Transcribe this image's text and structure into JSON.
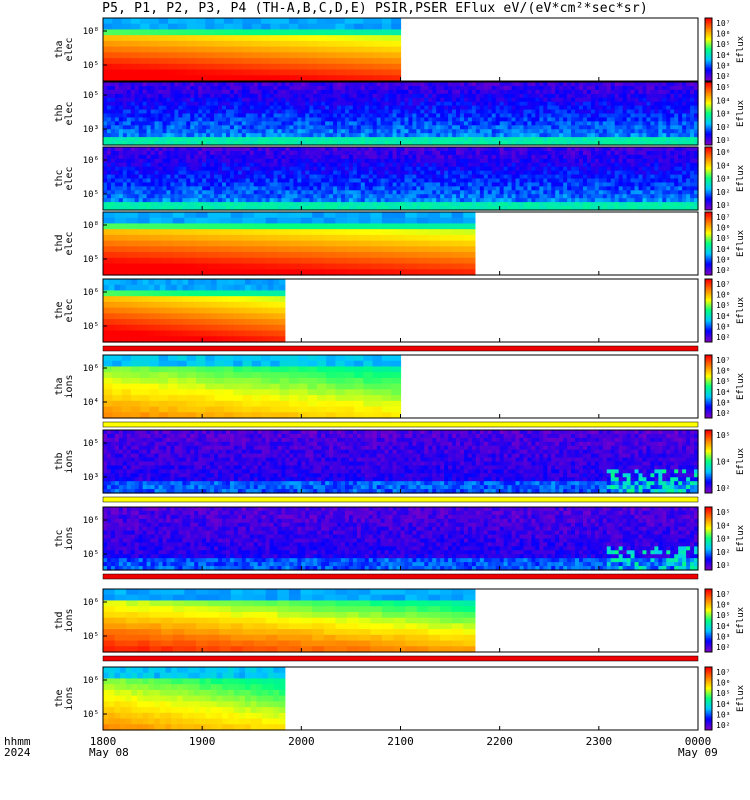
{
  "title": "P5, P1, P2, P3, P4 (TH-A,B,C,D,E) PSIR,PSER EFlux eV/(eV*cm²*sec*sr)",
  "x_axis": {
    "ticks": [
      "1800",
      "1900",
      "2000",
      "2100",
      "2200",
      "2300",
      "0000"
    ],
    "row_label_1": "hhmm",
    "row_label_2": "2024",
    "start_date": "May 08",
    "end_date": "May 09"
  },
  "colormap": [
    "#7a00c8",
    "#0000ff",
    "#00c8ff",
    "#00ff80",
    "#ffff00",
    "#ff8000",
    "#ff0000"
  ],
  "chart_data": [
    {
      "type": "heatmap",
      "probe": "tha",
      "species": "elec",
      "ylabel": "tha\nelec",
      "y_ticks": [
        "10⁸",
        "10⁵"
      ],
      "data_end": "2100",
      "colorbar_label": "Eflux",
      "colorbar_ticks": [
        "10⁷",
        "10⁶",
        "10⁵",
        "10⁴",
        "10³",
        "10²"
      ],
      "pattern": "elec_hot",
      "flags_below": []
    },
    {
      "type": "heatmap",
      "probe": "thb",
      "species": "elec",
      "ylabel": "thb\nelec",
      "y_ticks": [
        "10⁵",
        "10³"
      ],
      "data_end": "0000",
      "colorbar_label": "Eflux",
      "colorbar_ticks": [
        "10⁵",
        "10⁴",
        "10³",
        "10²",
        "10¹"
      ],
      "pattern": "noisy_elec",
      "flags_below": []
    },
    {
      "type": "heatmap",
      "probe": "thc",
      "species": "elec",
      "ylabel": "thc\nelec",
      "y_ticks": [
        "10⁶",
        "10⁵"
      ],
      "data_end": "0000",
      "colorbar_label": "Eflux",
      "colorbar_ticks": [
        "10⁶",
        "10⁴",
        "10³",
        "10²",
        "10¹"
      ],
      "pattern": "noisy_elec",
      "flags_below": []
    },
    {
      "type": "heatmap",
      "probe": "thd",
      "species": "elec",
      "ylabel": "thd\nelec",
      "y_ticks": [
        "10⁸",
        "10⁵"
      ],
      "data_end": "2145",
      "colorbar_label": "Eflux",
      "colorbar_ticks": [
        "10⁷",
        "10⁶",
        "10⁵",
        "10⁴",
        "10³",
        "10²"
      ],
      "pattern": "elec_hot",
      "flags_below": []
    },
    {
      "type": "heatmap",
      "probe": "the",
      "species": "elec",
      "ylabel": "the\nelec",
      "y_ticks": [
        "10⁶",
        "10⁵"
      ],
      "data_end": "1950",
      "colorbar_label": "Eflux",
      "colorbar_ticks": [
        "10⁷",
        "10⁶",
        "10⁵",
        "10⁴",
        "10³",
        "10²"
      ],
      "pattern": "elec_hot",
      "flags_below": [
        "red"
      ]
    },
    {
      "type": "heatmap",
      "probe": "tha",
      "species": "ions",
      "ylabel": "tha\nions",
      "y_ticks": [
        "10⁶",
        "10⁴"
      ],
      "data_end": "2100",
      "colorbar_label": "Eflux",
      "colorbar_ticks": [
        "10⁷",
        "10⁶",
        "10⁵",
        "10⁴",
        "10³",
        "10²"
      ],
      "pattern": "ions_warm",
      "flags_below": [
        "yellow"
      ]
    },
    {
      "type": "heatmap",
      "probe": "thb",
      "species": "ions",
      "ylabel": "thb\nions",
      "y_ticks": [
        "10⁵",
        "10³"
      ],
      "data_end": "0000",
      "colorbar_label": "Eflux",
      "colorbar_ticks": [
        "10⁵",
        "10⁴",
        "10²"
      ],
      "pattern": "noisy_ions",
      "flags_below": [
        "yellow"
      ]
    },
    {
      "type": "heatmap",
      "probe": "thc",
      "species": "ions",
      "ylabel": "thc\nions",
      "y_ticks": [
        "10⁶",
        "10⁵"
      ],
      "data_end": "0000",
      "colorbar_label": "Eflux",
      "colorbar_ticks": [
        "10⁵",
        "10⁴",
        "10³",
        "10²",
        "10¹"
      ],
      "pattern": "noisy_ions",
      "flags_below": [
        "red"
      ]
    },
    {
      "type": "heatmap",
      "probe": "thd",
      "species": "ions",
      "ylabel": "thd\nions",
      "y_ticks": [
        "10⁶",
        "10⁵"
      ],
      "data_end": "2145",
      "colorbar_label": "Eflux",
      "colorbar_ticks": [
        "10⁷",
        "10⁶",
        "10⁵",
        "10⁴",
        "10³",
        "10²"
      ],
      "pattern": "ions_hot",
      "flags_below": [
        "red"
      ]
    },
    {
      "type": "heatmap",
      "probe": "the",
      "species": "ions",
      "ylabel": "the\nions",
      "y_ticks": [
        "10⁶",
        "10⁵"
      ],
      "data_end": "1950",
      "colorbar_label": "Eflux",
      "colorbar_ticks": [
        "10⁷",
        "10⁶",
        "10⁵",
        "10⁴",
        "10³",
        "10²"
      ],
      "pattern": "ions_warm",
      "flags_below": []
    }
  ]
}
